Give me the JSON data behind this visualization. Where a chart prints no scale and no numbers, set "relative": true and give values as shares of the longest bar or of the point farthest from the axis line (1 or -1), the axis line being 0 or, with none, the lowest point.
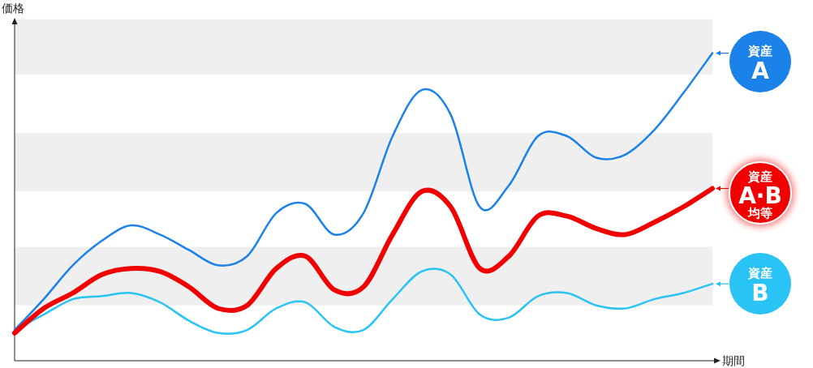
{
  "chart_data": {
    "type": "line",
    "relative": true,
    "xlabel": "期間",
    "ylabel": "価格",
    "categories": [
      null,
      null,
      null,
      null,
      null,
      null,
      null,
      null,
      null,
      null,
      null,
      null,
      null,
      null,
      null,
      null,
      null,
      null,
      null,
      null,
      null,
      null,
      null,
      null,
      null
    ],
    "series": [
      {
        "name": "資産A",
        "color": "#1a82e8",
        "values": [
          0.1,
          0.2,
          0.31,
          0.39,
          0.44,
          0.41,
          0.36,
          0.31,
          0.34,
          0.48,
          0.51,
          0.41,
          0.48,
          0.73,
          0.88,
          0.8,
          0.5,
          0.57,
          0.73,
          0.73,
          0.66,
          0.67,
          0.75,
          0.87,
          1
        ]
      },
      {
        "name": "資産A·B均等",
        "color": "#f00000",
        "values": [
          0.09,
          0.17,
          0.22,
          0.28,
          0.3,
          0.29,
          0.24,
          0.17,
          0.18,
          0.3,
          0.34,
          0.23,
          0.24,
          0.41,
          0.55,
          0.5,
          0.3,
          0.34,
          0.47,
          0.47,
          0.43,
          0.41,
          0.45,
          0.5,
          0.56
        ]
      },
      {
        "name": "資産B",
        "color": "#29c3f5",
        "values": [
          0.1,
          0.15,
          0.2,
          0.21,
          0.22,
          0.19,
          0.13,
          0.09,
          0.1,
          0.17,
          0.19,
          0.11,
          0.1,
          0.2,
          0.29,
          0.28,
          0.15,
          0.14,
          0.21,
          0.22,
          0.18,
          0.17,
          0.2,
          0.22,
          0.25
        ]
      }
    ],
    "bands": [
      {
        "axis": "y",
        "from": 0.93,
        "to": 1.11,
        "color": "#efefef"
      },
      {
        "axis": "y",
        "from": 0.55,
        "to": 0.74,
        "color": "#efefef"
      },
      {
        "axis": "y",
        "from": 0.18,
        "to": 0.37,
        "color": "#efefef"
      }
    ],
    "marker": "none",
    "line_style": "solid",
    "legend": "right"
  }
}
